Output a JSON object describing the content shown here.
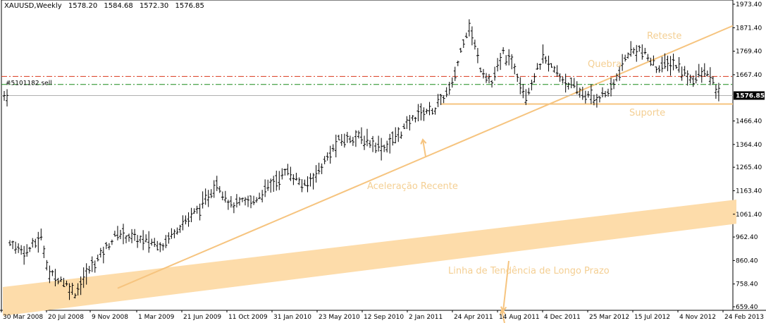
{
  "header": {
    "symbol": "XAUUSD,Weekly",
    "open": "1578.20",
    "high": "1584.68",
    "low": "1572.30",
    "close": "1576.85"
  },
  "order_label": "#5101182 sell",
  "current_price_label": "1576.85",
  "colors": {
    "bar": "#000000",
    "accent": "#f6c47f",
    "band": "#fddcaa",
    "order_red": "#d9391c",
    "order_green": "#1a8a1a",
    "price_line": "#b0b0b0",
    "price_tag_bg": "#000000"
  },
  "chart_data": {
    "type": "ohlc",
    "title": "XAUUSD,Weekly",
    "ylim": [
      659.4,
      1973.4
    ],
    "y_ticks": [
      1973.4,
      1871.4,
      1769.4,
      1667.4,
      1576.85,
      1466.4,
      1364.4,
      1265.4,
      1163.4,
      1061.4,
      962.4,
      860.4,
      758.4,
      659.4
    ],
    "y_tick_labels": [
      "1973.40",
      "1871.40",
      "1769.40",
      "1667.40",
      "1576.85",
      "1466.40",
      "1364.40",
      "1265.40",
      "1163.40",
      "1061.40",
      "962.40",
      "860.40",
      "758.40",
      "659.40"
    ],
    "x_ticks": [
      "30 Mar 2008",
      "20 Jul 2008",
      "9 Nov 2008",
      "1 Mar 2009",
      "21 Jun 2009",
      "11 Oct 2009",
      "31 Jan 2010",
      "23 May 2010",
      "12 Sep 2010",
      "2 Jan 2011",
      "24 Apr 2011",
      "14 Aug 2011",
      "4 Dec 2011",
      "25 Mar 2012",
      "15 Jul 2012",
      "4 Nov 2012",
      "24 Feb 2013"
    ],
    "key_prices": [
      {
        "week": 2,
        "price": 930
      },
      {
        "week": 8,
        "price": 900
      },
      {
        "week": 13,
        "price": 960
      },
      {
        "week": 16,
        "price": 800
      },
      {
        "week": 20,
        "price": 780
      },
      {
        "week": 25,
        "price": 720
      },
      {
        "week": 30,
        "price": 820
      },
      {
        "week": 35,
        "price": 900
      },
      {
        "week": 40,
        "price": 980
      },
      {
        "week": 48,
        "price": 950
      },
      {
        "week": 56,
        "price": 930
      },
      {
        "week": 60,
        "price": 990
      },
      {
        "week": 70,
        "price": 1100
      },
      {
        "week": 75,
        "price": 1200
      },
      {
        "week": 80,
        "price": 1100
      },
      {
        "week": 88,
        "price": 1120
      },
      {
        "week": 95,
        "price": 1200
      },
      {
        "week": 100,
        "price": 1250
      },
      {
        "week": 106,
        "price": 1180
      },
      {
        "week": 112,
        "price": 1270
      },
      {
        "week": 118,
        "price": 1380
      },
      {
        "week": 124,
        "price": 1400
      },
      {
        "week": 128,
        "price": 1380
      },
      {
        "week": 134,
        "price": 1350
      },
      {
        "week": 140,
        "price": 1420
      },
      {
        "week": 146,
        "price": 1500
      },
      {
        "week": 152,
        "price": 1520
      },
      {
        "week": 158,
        "price": 1620
      },
      {
        "week": 162,
        "price": 1820
      },
      {
        "week": 164,
        "price": 1880
      },
      {
        "week": 168,
        "price": 1700
      },
      {
        "week": 172,
        "price": 1630
      },
      {
        "week": 176,
        "price": 1760
      },
      {
        "week": 180,
        "price": 1700
      },
      {
        "week": 184,
        "price": 1580
      },
      {
        "week": 190,
        "price": 1740
      },
      {
        "week": 196,
        "price": 1660
      },
      {
        "week": 202,
        "price": 1600
      },
      {
        "week": 208,
        "price": 1560
      },
      {
        "week": 214,
        "price": 1600
      },
      {
        "week": 220,
        "price": 1760
      },
      {
        "week": 224,
        "price": 1780
      },
      {
        "week": 230,
        "price": 1700
      },
      {
        "week": 236,
        "price": 1720
      },
      {
        "week": 242,
        "price": 1650
      },
      {
        "week": 248,
        "price": 1680
      },
      {
        "week": 252,
        "price": 1577
      }
    ],
    "horizontal_lines": [
      {
        "name": "order-sell-line",
        "price": 1660,
        "style": "dash-dot",
        "color": "order_red"
      },
      {
        "name": "order-tp-line",
        "price": 1625,
        "style": "dash-dot",
        "color": "order_green"
      },
      {
        "name": "current-price-line",
        "price": 1576.85,
        "style": "solid",
        "color": "price_line"
      },
      {
        "name": "support-line",
        "price": 1540,
        "style": "solid",
        "color": "accent"
      }
    ],
    "annotations": [
      {
        "text": "Reteste"
      },
      {
        "text": "Quebra"
      },
      {
        "text": "Suporte"
      },
      {
        "text": "Aceleração Recente"
      },
      {
        "text": "Linha de Tendência de Longo Prazo"
      }
    ]
  }
}
